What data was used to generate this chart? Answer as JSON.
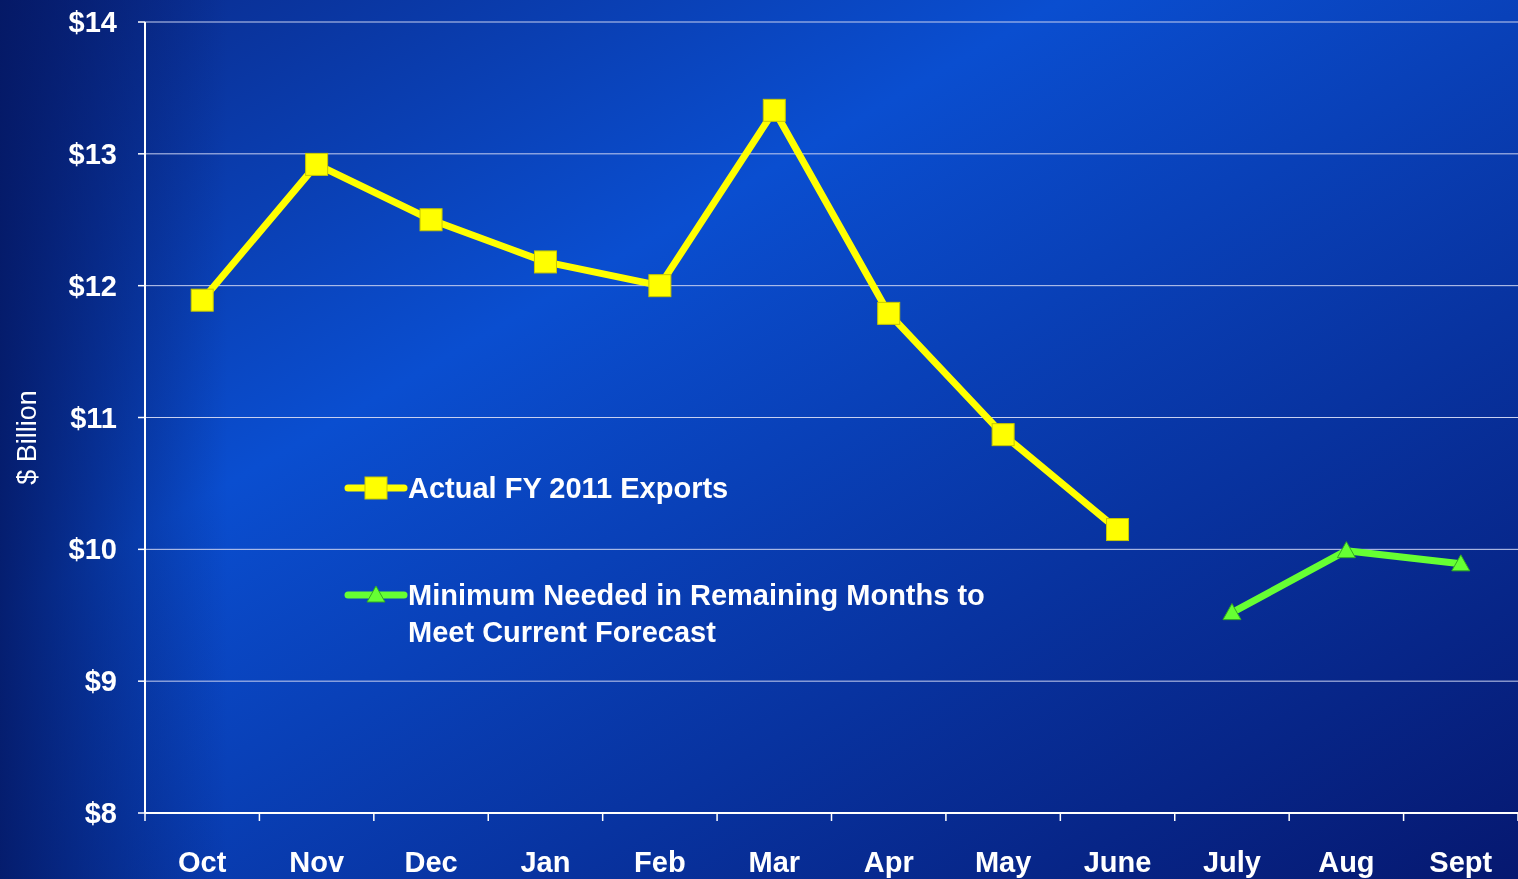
{
  "chart_data": {
    "type": "line",
    "ylabel": "$ Billion",
    "categories": [
      "Oct",
      "Nov",
      "Dec",
      "Jan",
      "Feb",
      "Mar",
      "Apr",
      "May",
      "June",
      "July",
      "Aug",
      "Sept"
    ],
    "series": [
      {
        "name": "Actual FY 2011 Exports",
        "color": "#ffff00",
        "marker": "square",
        "values": [
          11.89,
          12.92,
          12.5,
          12.18,
          12.0,
          13.33,
          11.79,
          10.87,
          10.15,
          null,
          null,
          null
        ]
      },
      {
        "name": "Minimum Needed in Remaining Months to Meet Current Forecast",
        "color": "#66ff33",
        "marker": "triangle",
        "values": [
          null,
          null,
          null,
          null,
          null,
          null,
          null,
          null,
          null,
          9.52,
          9.99,
          9.89
        ]
      }
    ],
    "ylim": [
      8,
      14
    ],
    "yticks": [
      {
        "value": 8,
        "label": "$8"
      },
      {
        "value": 9,
        "label": "$9"
      },
      {
        "value": 10,
        "label": "$10"
      },
      {
        "value": 11,
        "label": "$11"
      },
      {
        "value": 12,
        "label": "$12"
      },
      {
        "value": 13,
        "label": "$13"
      },
      {
        "value": 14,
        "label": "$14"
      }
    ],
    "grid": "y",
    "legend": "left"
  }
}
